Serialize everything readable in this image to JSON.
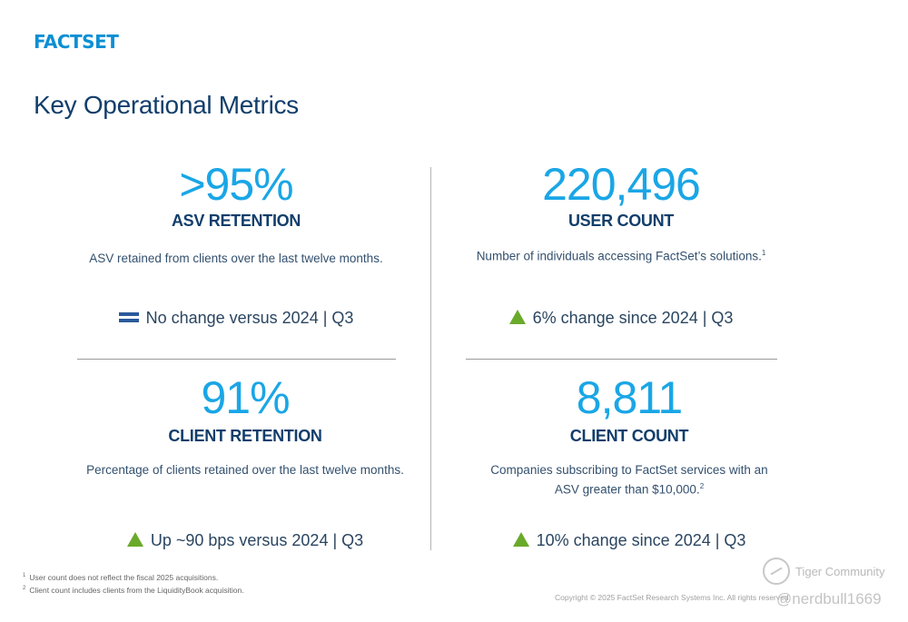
{
  "brand": {
    "logo_text": "FACTSET"
  },
  "page": {
    "title": "Key Operational Metrics"
  },
  "metrics": [
    {
      "value": ">95%",
      "label": "ASV RETENTION",
      "description": "ASV retained from clients over the last twelve months.",
      "change_icon": "equal-icon",
      "change_text": "No change versus 2024 | Q3"
    },
    {
      "value": "220,496",
      "label": "USER COUNT",
      "description": "Number of individuals accessing FactSet’s solutions.",
      "description_sup": "1",
      "change_icon": "up-triangle-icon",
      "change_text": "6% change since 2024 | Q3"
    },
    {
      "value": "91%",
      "label": "CLIENT RETENTION",
      "description": "Percentage of clients retained over the last twelve  months.",
      "change_icon": "up-triangle-icon",
      "change_text": "Up ~90 bps versus 2024 | Q3"
    },
    {
      "value": "8,811",
      "label": "CLIENT COUNT",
      "description_line1": "Companies subscribing to FactSet services with an",
      "description_line2": "ASV greater than $10,000.",
      "description_sup": "2",
      "change_icon": "up-triangle-icon",
      "change_text": "10% change since 2024 | Q3"
    }
  ],
  "footnotes": [
    {
      "num": "1",
      "text": "User count does not reflect the fiscal 2025 acquisitions."
    },
    {
      "num": "2",
      "text": "Client count includes clients from the LiquidityBook acquisition."
    }
  ],
  "copyright": "Copyright © 2025 FactSet Research Systems Inc. All rights reserved.",
  "watermark": {
    "brand": "Tiger Community",
    "user": "@nerdbull1669"
  },
  "colors": {
    "accent": "#1aa6e6",
    "navy": "#123e6b",
    "up": "#6aaa2a",
    "equal": "#2a5a9c"
  }
}
